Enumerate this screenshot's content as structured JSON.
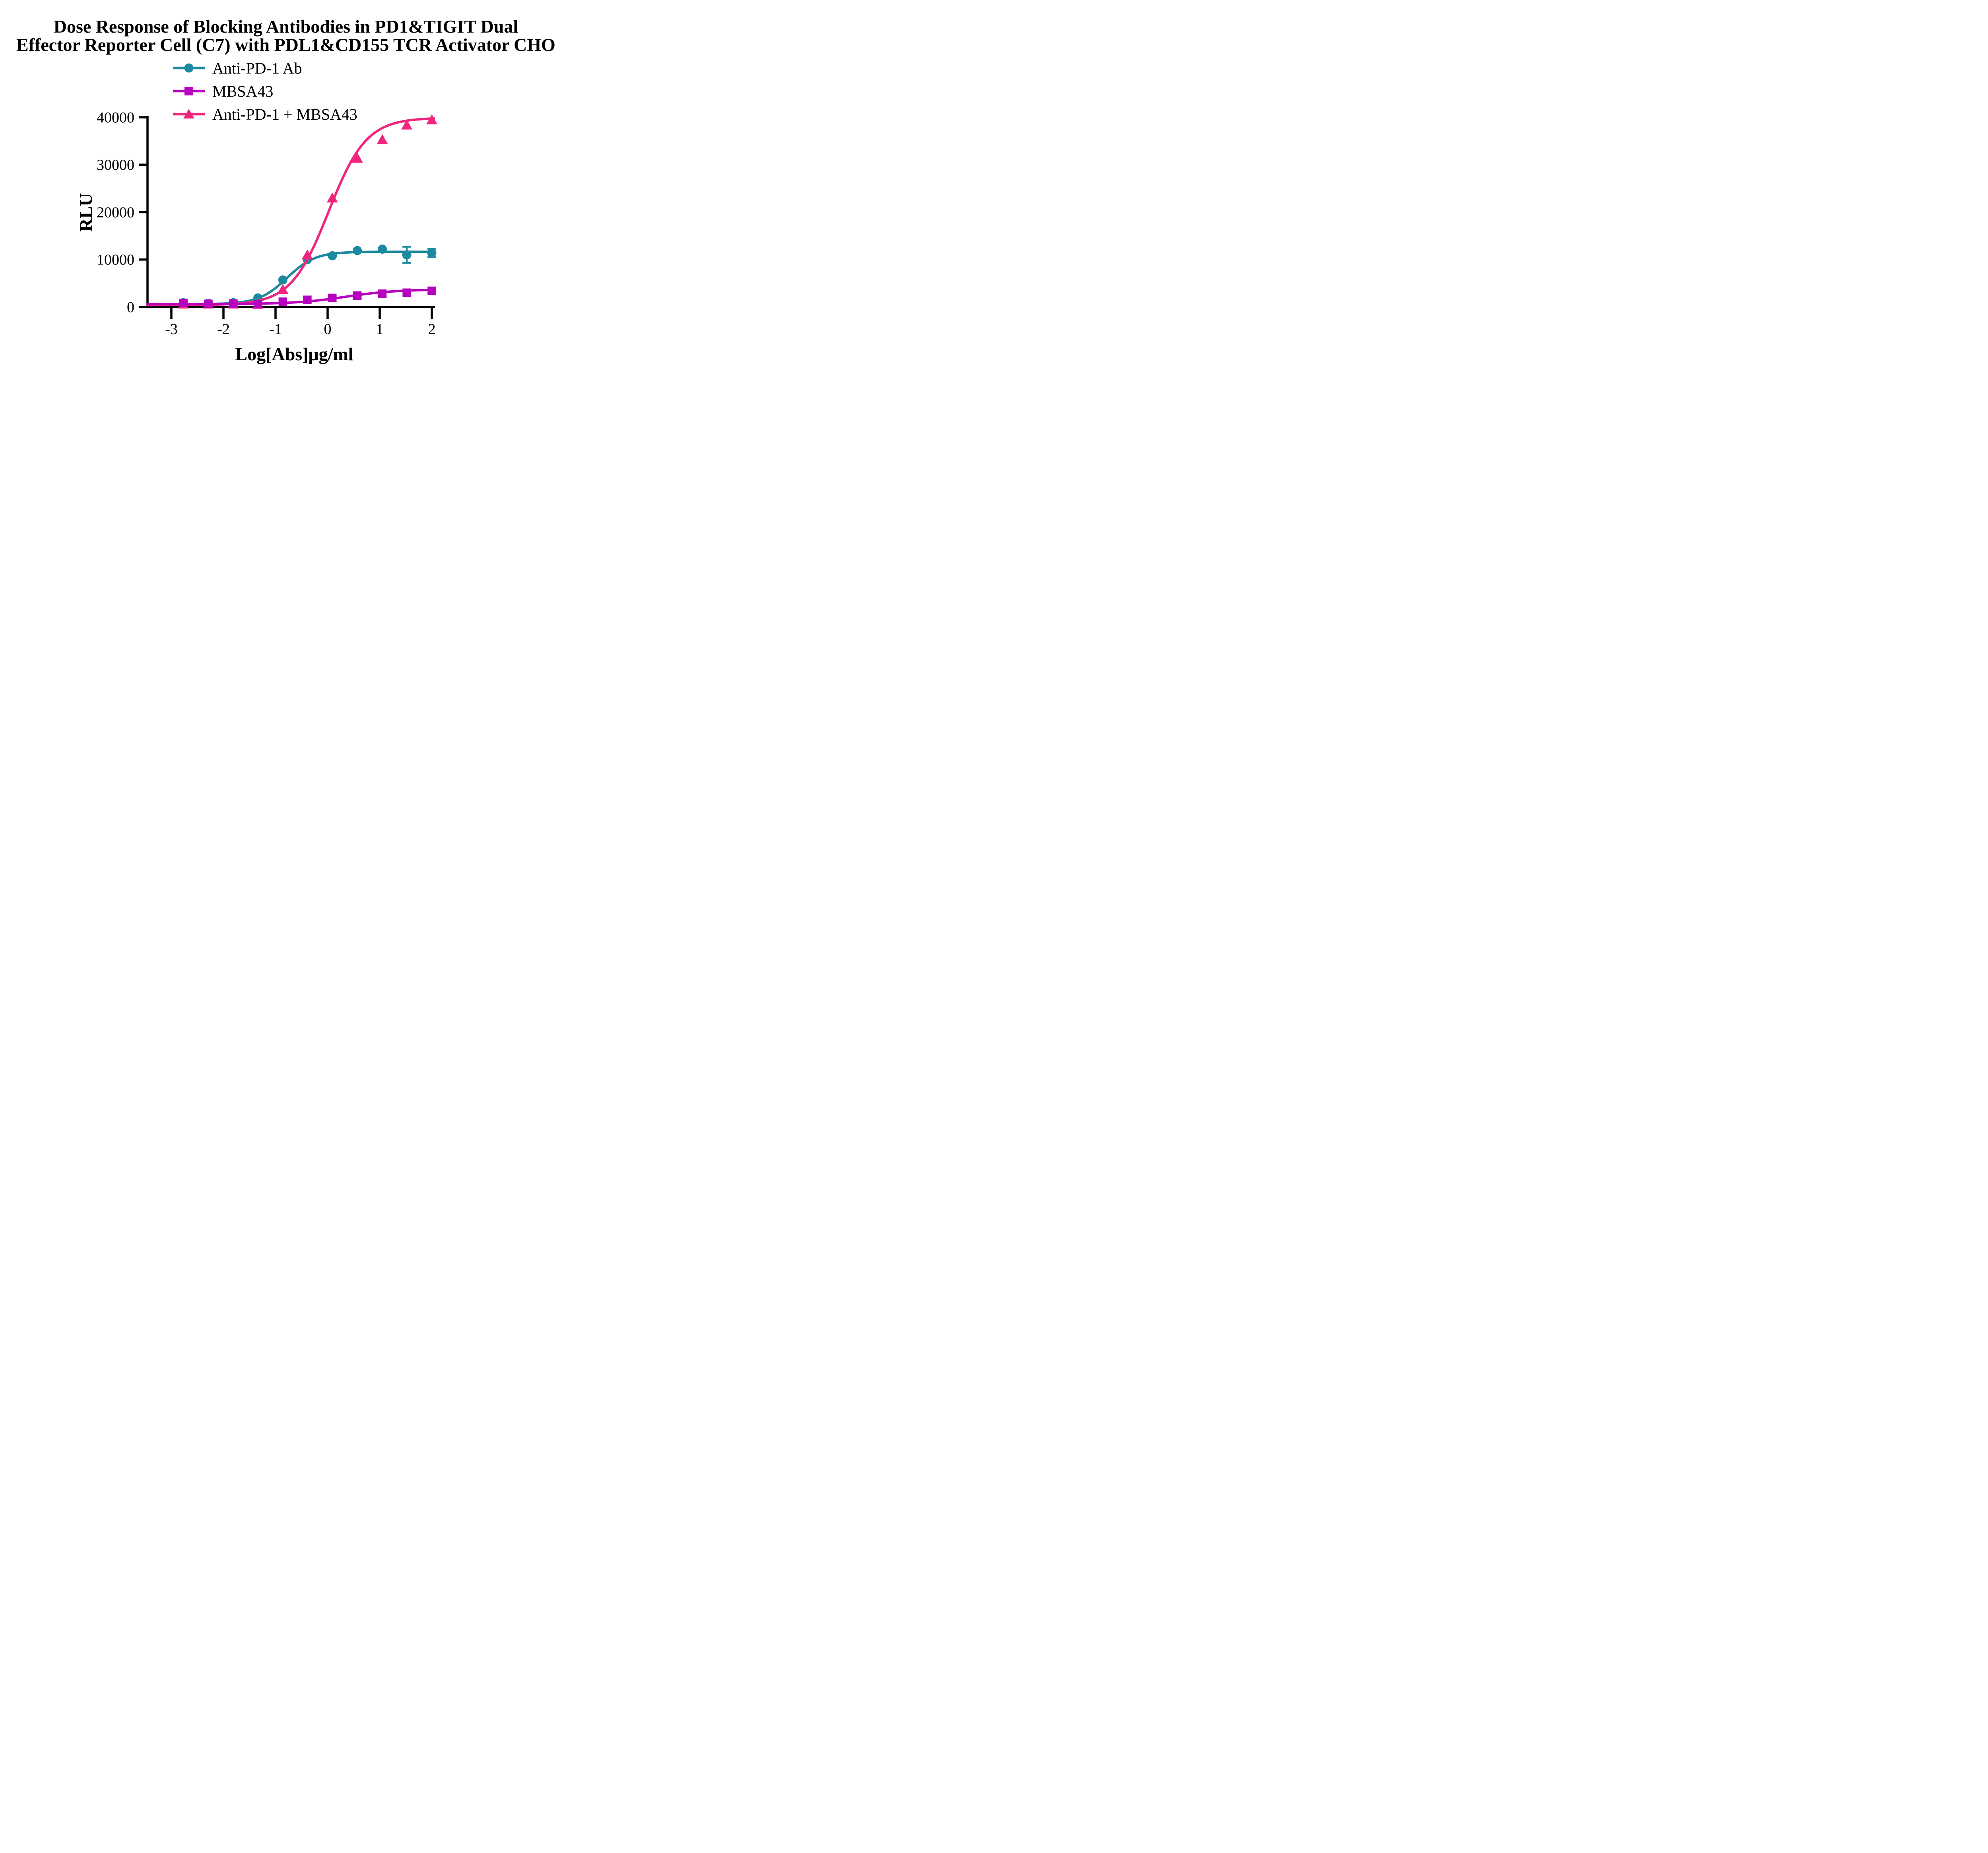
{
  "page": {
    "background": "#FFFFFF"
  },
  "title": {
    "line1": "Dose Response of Blocking Antibodies in PD1&TIGIT Dual",
    "line2": "Effector Reporter Cell (C7) with PDL1&CD155 TCR Activator CHO"
  },
  "legend": {
    "items": [
      {
        "label": "Anti-PD-1 Ab",
        "color": "#1B8A9E",
        "marker": "circle"
      },
      {
        "label": "MBSA43",
        "color": "#B602BE",
        "marker": "square"
      },
      {
        "label": "Anti-PD-1 + MBSA43",
        "color": "#F0267E",
        "marker": "triangle"
      }
    ]
  },
  "chart_data": {
    "type": "scatter",
    "title": "Dose Response of Blocking Antibodies in PD1&TIGIT Dual Effector Reporter Cell (C7) with PDL1&CD155 TCR Activator CHO",
    "xlabel": "Log[Abs]μg/ml",
    "ylabel": "RLU",
    "x_ticks": [
      -3,
      -2,
      -1,
      0,
      1,
      2
    ],
    "y_ticks": [
      0,
      10000,
      20000,
      30000,
      40000
    ],
    "xlim": [
      -3.46,
      2.06
    ],
    "ylim": [
      0,
      40000
    ],
    "grid": false,
    "legend_position": "top-left-above-plot",
    "x": [
      -2.77,
      -2.29,
      -1.81,
      -1.34,
      -0.86,
      -0.39,
      0.09,
      0.57,
      1.05,
      1.52,
      2.0
    ],
    "series": [
      {
        "name": "Anti-PD-1 Ab",
        "marker": "circle",
        "color": "#1B8A9E",
        "values": [
          900,
          800,
          900,
          1900,
          5700,
          10000,
          10800,
          11900,
          12200,
          11000,
          11400
        ],
        "errors": [
          0,
          0,
          0,
          0,
          0,
          0,
          0,
          0,
          0,
          1700,
          900
        ],
        "fit": {
          "model": "4PL",
          "bottom": 600,
          "top": 11650,
          "logEC50": -0.78,
          "hill": 1.6
        }
      },
      {
        "name": "MBSA43",
        "marker": "square",
        "color": "#B602BE",
        "values": [
          850,
          650,
          700,
          600,
          1100,
          1500,
          1900,
          2400,
          2800,
          3000,
          3400
        ],
        "errors": [
          0,
          0,
          0,
          0,
          0,
          0,
          0,
          0,
          0,
          0,
          0
        ],
        "fit": {
          "model": "4PL",
          "bottom": 620,
          "top": 3700,
          "logEC50": 0.35,
          "hill": 0.9
        }
      },
      {
        "name": "Anti-PD-1 + MBSA43",
        "marker": "triangle",
        "color": "#F0267E",
        "values": [
          650,
          650,
          650,
          600,
          3700,
          11000,
          23000,
          31400,
          35300,
          38400,
          39500
        ],
        "errors": [
          0,
          0,
          0,
          0,
          0,
          0,
          0,
          0,
          0,
          0,
          0
        ],
        "fit": {
          "model": "4PL",
          "bottom": 400,
          "top": 39900,
          "logEC50": 0.02,
          "hill": 1.2
        }
      }
    ]
  }
}
